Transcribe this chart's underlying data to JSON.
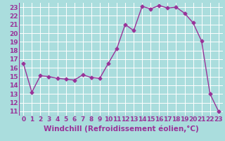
{
  "x": [
    0,
    1,
    2,
    3,
    4,
    5,
    6,
    7,
    8,
    9,
    10,
    11,
    12,
    13,
    14,
    15,
    16,
    17,
    18,
    19,
    20,
    21,
    22,
    23
  ],
  "y": [
    16.5,
    13.2,
    15.1,
    15.0,
    14.8,
    14.7,
    14.6,
    15.2,
    14.9,
    14.8,
    16.5,
    18.2,
    21.0,
    20.3,
    23.1,
    22.8,
    23.2,
    22.9,
    23.0,
    22.3,
    21.2,
    19.1,
    13.0,
    11.0
  ],
  "line_color": "#993399",
  "marker": "D",
  "markersize": 2.5,
  "linewidth": 1.0,
  "bg_color": "#aadddd",
  "grid_color": "#ffffff",
  "xlabel": "Windchill (Refroidissement éolien,°C)",
  "xlabel_color": "#993399",
  "ylabel_ticks": [
    11,
    12,
    13,
    14,
    15,
    16,
    17,
    18,
    19,
    20,
    21,
    22,
    23
  ],
  "xlim": [
    -0.5,
    23.5
  ],
  "ylim": [
    10.5,
    23.5
  ],
  "xtick_labels": [
    "0",
    "1",
    "2",
    "3",
    "4",
    "5",
    "6",
    "7",
    "8",
    "9",
    "10",
    "11",
    "12",
    "13",
    "14",
    "15",
    "16",
    "17",
    "18",
    "19",
    "20",
    "21",
    "22",
    "23"
  ],
  "tick_fontsize": 6.5,
  "xlabel_fontsize": 7.5
}
